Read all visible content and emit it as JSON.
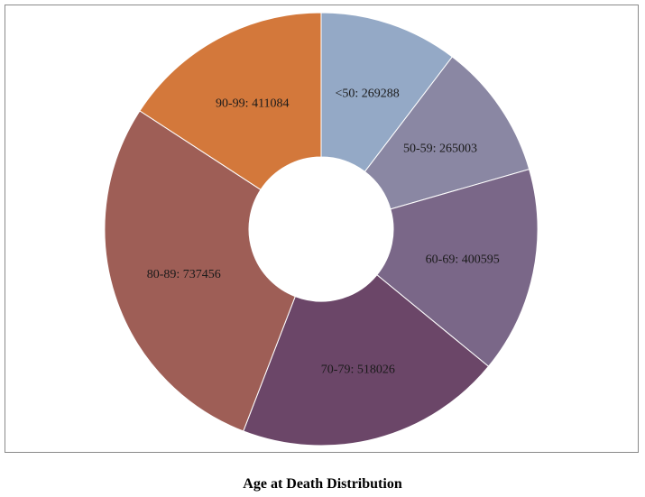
{
  "chart_data": {
    "type": "pie",
    "title": "Age at Death Distribution",
    "donut": true,
    "slices": [
      {
        "label": "<50",
        "value": 269288,
        "color": "#94a9c6"
      },
      {
        "label": "50-59",
        "value": 265003,
        "color": "#8a87a3"
      },
      {
        "label": "60-69",
        "value": 400595,
        "color": "#7a6788"
      },
      {
        "label": "70-79",
        "value": 518026,
        "color": "#6b4668"
      },
      {
        "label": "80-89",
        "value": 737456,
        "color": "#9e5e56"
      },
      {
        "label": "90-99",
        "value": 411084,
        "color": "#d3783b"
      }
    ]
  }
}
